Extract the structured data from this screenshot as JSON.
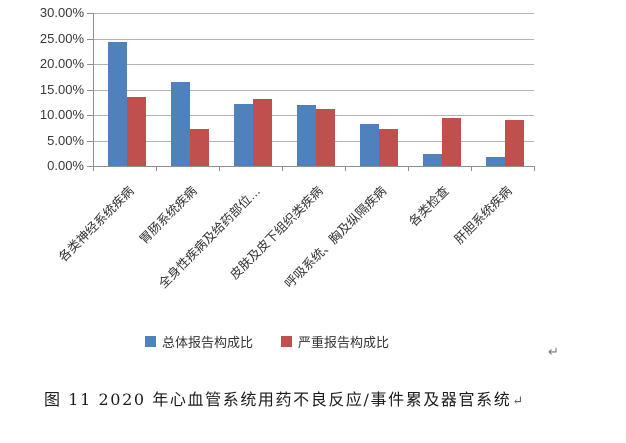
{
  "chart_data": {
    "type": "bar",
    "title": "",
    "xlabel": "",
    "ylabel": "",
    "categories": [
      "各类神经系统疾病",
      "胃肠系统疾病",
      "全身性疾病及给药部位…",
      "皮肤及皮下组织类疾病",
      "呼吸系统、胸及纵隔疾病",
      "各类检查",
      "肝胆系统疾病"
    ],
    "series": [
      {
        "name": "总体报告构成比",
        "color": "#4f81bd",
        "values": [
          24.4,
          16.4,
          12.2,
          12.0,
          8.3,
          2.4,
          1.8
        ]
      },
      {
        "name": "严重报告构成比",
        "color": "#c0504d",
        "values": [
          13.5,
          7.2,
          13.1,
          11.1,
          7.2,
          9.5,
          9.0
        ]
      }
    ],
    "ylim": [
      0,
      30
    ],
    "ytick_step": 5,
    "ytick_labels": [
      "30.00%",
      "25.00%",
      "20.00%",
      "15.00%",
      "10.00%",
      "5.00%",
      "0.00%"
    ],
    "grid": true,
    "legend_position": "bottom"
  },
  "legend": {
    "items": [
      {
        "label": "总体报告构成比",
        "color": "#4f81bd"
      },
      {
        "label": "严重报告构成比",
        "color": "#c0504d"
      }
    ]
  },
  "caption": {
    "text": "图 11  2020 年心血管系统用药不良反应/事件累及器官系统"
  },
  "marks": {
    "return_symbol": "↵"
  },
  "colors": {
    "series_total": "#4f81bd",
    "series_severe": "#c0504d",
    "gridline": "#b3b3b3",
    "axis": "#8f8f8f"
  }
}
